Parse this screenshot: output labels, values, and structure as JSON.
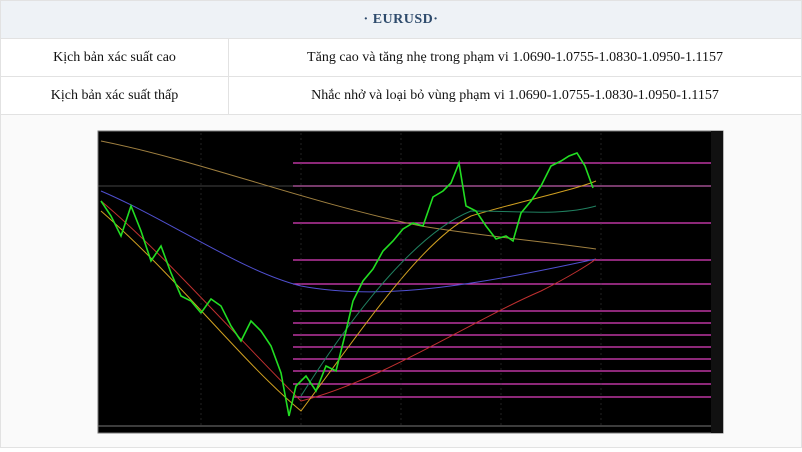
{
  "header": {
    "title": "· EURUSD·"
  },
  "table": {
    "rows": [
      [
        "Kịch bản xác suất cao",
        "Tăng cao và tăng nhẹ trong phạm vi 1.0690-1.0755-1.0830-1.0950-1.1157"
      ],
      [
        "Kịch bản xác suất thấp",
        "Nhắc nhở và loại bỏ vùng phạm vi 1.0690-1.0755-1.0830-1.0950-1.1157"
      ]
    ]
  }
}
